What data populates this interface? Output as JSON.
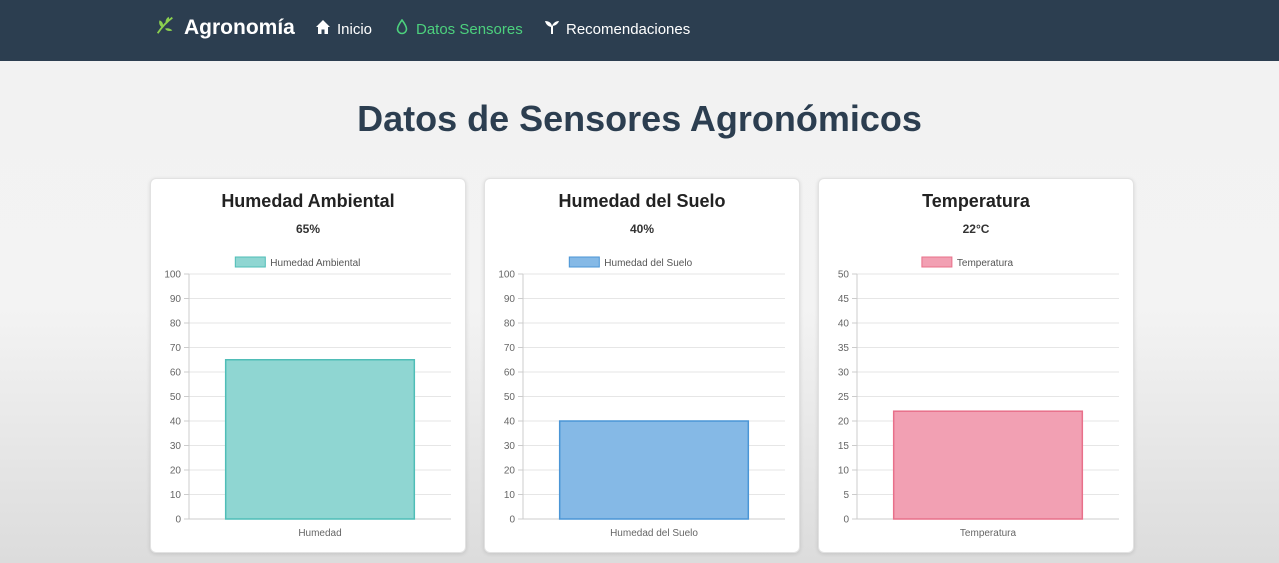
{
  "nav": {
    "brand": "Agronomía",
    "links": [
      {
        "label": "Inicio",
        "icon": "home-icon"
      },
      {
        "label": "Datos Sensores",
        "icon": "sensor-drop-icon",
        "active": true
      },
      {
        "label": "Recomendaciones",
        "icon": "seedling-icon"
      }
    ]
  },
  "page": {
    "title": "Datos de Sensores Agronómicos"
  },
  "colors": {
    "navbar_bg": "#2c3e50",
    "active_link": "#4cd07d",
    "title": "#2c3e50"
  },
  "cards": [
    {
      "title": "Humedad Ambiental",
      "value": "65%"
    },
    {
      "title": "Humedad del Suelo",
      "value": "40%"
    },
    {
      "title": "Temperatura",
      "value": "22°C"
    }
  ],
  "chart_data": [
    {
      "type": "bar",
      "categories": [
        "Humedad"
      ],
      "series": [
        {
          "name": "Humedad Ambiental",
          "values": [
            65
          ]
        }
      ],
      "ylim": [
        0,
        100
      ],
      "yticks": [
        0,
        10,
        20,
        30,
        40,
        50,
        60,
        70,
        80,
        90,
        100
      ],
      "legend": "top-center",
      "grid": true,
      "fill": "#8fd6d2",
      "stroke": "#4fbdb7"
    },
    {
      "type": "bar",
      "categories": [
        "Humedad del Suelo"
      ],
      "series": [
        {
          "name": "Humedad del Suelo",
          "values": [
            40
          ]
        }
      ],
      "ylim": [
        0,
        100
      ],
      "yticks": [
        0,
        10,
        20,
        30,
        40,
        50,
        60,
        70,
        80,
        90,
        100
      ],
      "legend": "top-center",
      "grid": true,
      "fill": "#85b9e6",
      "stroke": "#4a95d6"
    },
    {
      "type": "bar",
      "categories": [
        "Temperatura"
      ],
      "series": [
        {
          "name": "Temperatura",
          "values": [
            22
          ]
        }
      ],
      "ylim": [
        0,
        50
      ],
      "yticks": [
        0,
        5,
        10,
        15,
        20,
        25,
        30,
        35,
        40,
        45,
        50
      ],
      "legend": "top-center",
      "grid": true,
      "fill": "#f2a0b3",
      "stroke": "#e8708a"
    }
  ]
}
